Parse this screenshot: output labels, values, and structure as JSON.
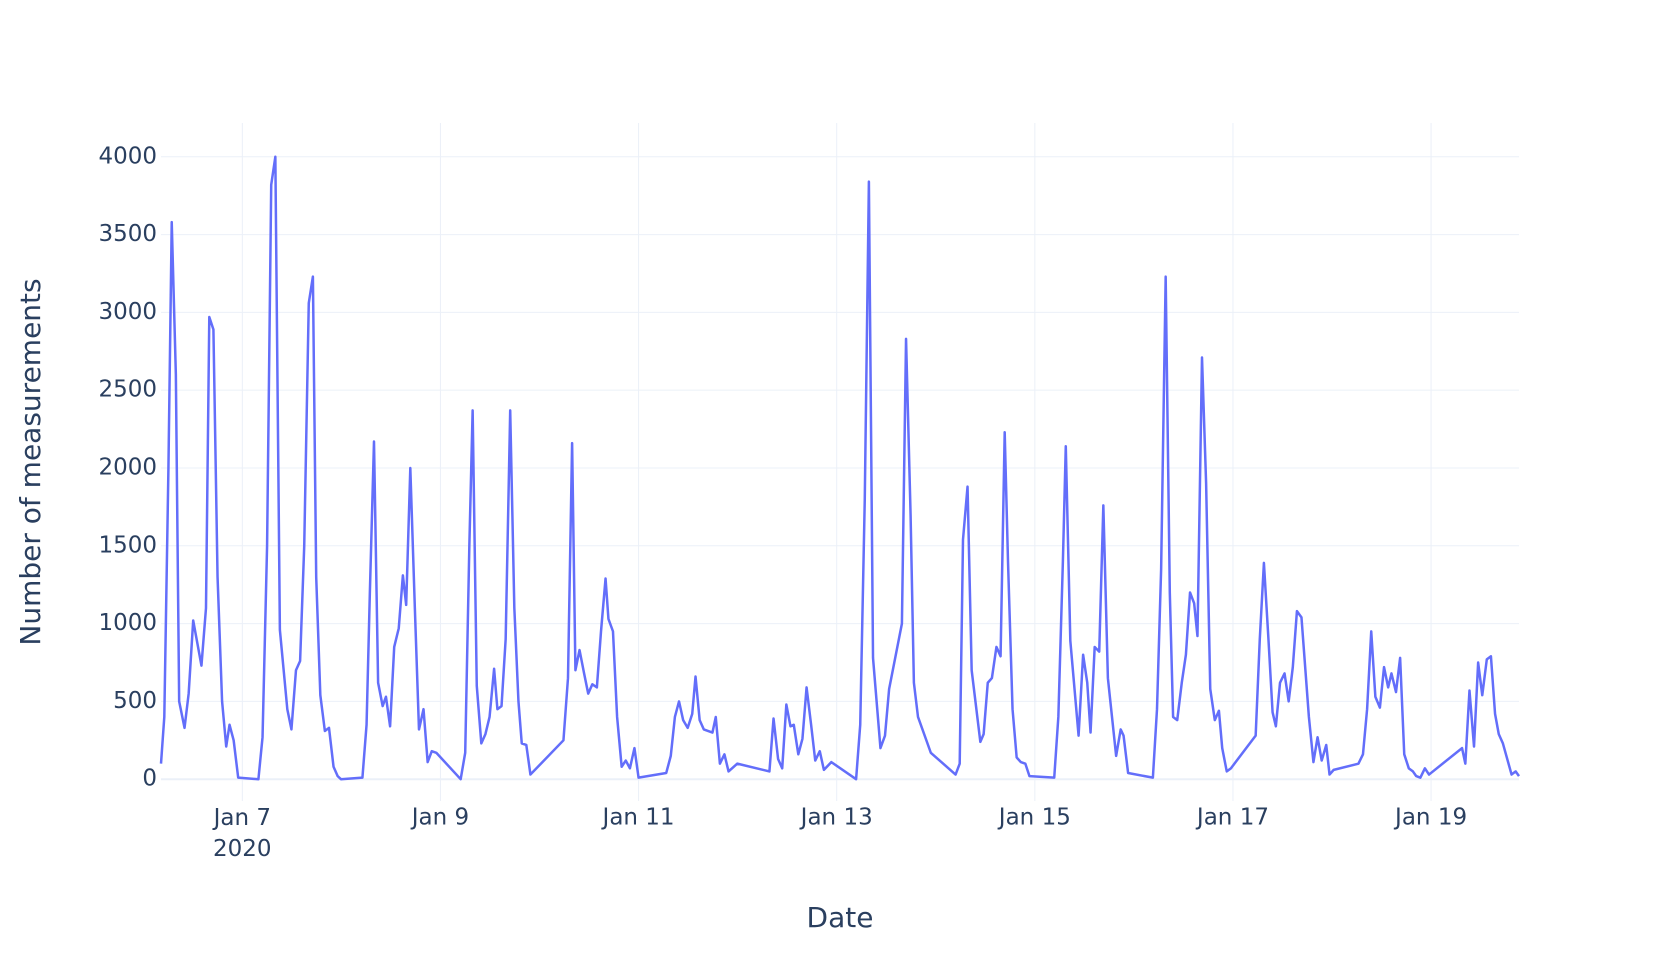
{
  "chart_data": {
    "type": "line",
    "x_label": "Date",
    "y_label": "Number of measurements",
    "color": "#636efa",
    "grid": true,
    "xlim": [
      "2020-01-06 04:18",
      "2020-01-19 21:18"
    ],
    "xticks": [
      {
        "value": "2020-01-07",
        "label": "Jan 7\n2020"
      },
      {
        "value": "2020-01-09",
        "label": "Jan 9"
      },
      {
        "value": "2020-01-11",
        "label": "Jan 11"
      },
      {
        "value": "2020-01-13",
        "label": "Jan 13"
      },
      {
        "value": "2020-01-15",
        "label": "Jan 15"
      },
      {
        "value": "2020-01-17",
        "label": "Jan 17"
      },
      {
        "value": "2020-01-19",
        "label": "Jan 19"
      }
    ],
    "ylim": [
      -140,
      4217
    ],
    "yticks": [
      0,
      500,
      1000,
      1500,
      2000,
      2500,
      3000,
      3500,
      4000
    ],
    "x": [
      "2020-01-06 04:18",
      "2020-01-06 05:06",
      "2020-01-06 06:06",
      "2020-01-06 06:54",
      "2020-01-06 07:54",
      "2020-01-06 08:42",
      "2020-01-06 10:00",
      "2020-01-06 11:00",
      "2020-01-06 12:06",
      "2020-01-06 14:06",
      "2020-01-06 15:12",
      "2020-01-06 16:00",
      "2020-01-06 17:00",
      "2020-01-06 18:00",
      "2020-01-06 19:06",
      "2020-01-06 20:06",
      "2020-01-06 20:54",
      "2020-01-06 21:54",
      "2020-01-06 23:00",
      "2020-01-07 03:54",
      "2020-01-07 04:54",
      "2020-01-07 06:00",
      "2020-01-07 07:00",
      "2020-01-07 08:00",
      "2020-01-07 09:06",
      "2020-01-07 10:54",
      "2020-01-07 11:54",
      "2020-01-07 13:00",
      "2020-01-07 14:00",
      "2020-01-07 15:00",
      "2020-01-07 16:06",
      "2020-01-07 17:06",
      "2020-01-07 17:54",
      "2020-01-07 18:54",
      "2020-01-07 20:00",
      "2020-01-07 21:00",
      "2020-01-07 22:06",
      "2020-01-07 23:06",
      "2020-01-07 23:54",
      "2020-01-08 05:06",
      "2020-01-08 06:06",
      "2020-01-08 06:54",
      "2020-01-08 07:54",
      "2020-01-08 08:54",
      "2020-01-08 10:00",
      "2020-01-08 10:48",
      "2020-01-08 11:48",
      "2020-01-08 12:48",
      "2020-01-08 13:54",
      "2020-01-08 14:54",
      "2020-01-08 15:42",
      "2020-01-08 16:42",
      "2020-01-08 17:48",
      "2020-01-08 18:48",
      "2020-01-08 19:54",
      "2020-01-08 20:54",
      "2020-01-08 21:54",
      "2020-01-08 23:00",
      "2020-01-09 04:54",
      "2020-01-09 06:00",
      "2020-01-09 07:00",
      "2020-01-09 07:48",
      "2020-01-09 08:48",
      "2020-01-09 09:54",
      "2020-01-09 10:54",
      "2020-01-09 11:54",
      "2020-01-09 13:00",
      "2020-01-09 13:48",
      "2020-01-09 14:48",
      "2020-01-09 15:48",
      "2020-01-09 16:54",
      "2020-01-09 17:54",
      "2020-01-09 18:54",
      "2020-01-09 19:42",
      "2020-01-09 20:48",
      "2020-01-09 21:48",
      "2020-01-10 05:48",
      "2020-01-10 06:54",
      "2020-01-10 07:54",
      "2020-01-10 08:42",
      "2020-01-10 09:42",
      "2020-01-10 10:48",
      "2020-01-10 11:48",
      "2020-01-10 12:48",
      "2020-01-10 13:54",
      "2020-01-10 14:54",
      "2020-01-10 16:00",
      "2020-01-10 16:42",
      "2020-01-10 17:48",
      "2020-01-10 18:48",
      "2020-01-10 19:54",
      "2020-01-10 20:54",
      "2020-01-10 21:54",
      "2020-01-10 23:00",
      "2020-01-11 00:00",
      "2020-01-11 06:42",
      "2020-01-11 07:48",
      "2020-01-11 08:48",
      "2020-01-11 09:48",
      "2020-01-11 10:48",
      "2020-01-11 11:54",
      "2020-01-11 13:00",
      "2020-01-11 13:48",
      "2020-01-11 14:48",
      "2020-01-11 15:48",
      "2020-01-11 17:54",
      "2020-01-11 18:42",
      "2020-01-11 19:42",
      "2020-01-11 20:48",
      "2020-01-11 21:48",
      "2020-01-11 23:54",
      "2020-01-12 07:42",
      "2020-01-12 08:42",
      "2020-01-12 09:48",
      "2020-01-12 10:48",
      "2020-01-12 11:48",
      "2020-01-12 12:48",
      "2020-01-12 13:36",
      "2020-01-12 14:42",
      "2020-01-12 15:42",
      "2020-01-12 16:42",
      "2020-01-12 17:48",
      "2020-01-12 18:48",
      "2020-01-12 19:54",
      "2020-01-12 20:54",
      "2020-01-12 22:42",
      "2020-01-13 04:42",
      "2020-01-13 05:42",
      "2020-01-13 06:48",
      "2020-01-13 07:48",
      "2020-01-13 08:48",
      "2020-01-13 10:36",
      "2020-01-13 11:42",
      "2020-01-13 12:42",
      "2020-01-13 15:48",
      "2020-01-13 16:48",
      "2020-01-13 17:54",
      "2020-01-13 18:42",
      "2020-01-13 19:42",
      "2020-01-13 22:48",
      "2020-01-14 04:48",
      "2020-01-14 05:48",
      "2020-01-14 06:36",
      "2020-01-14 07:42",
      "2020-01-14 08:42",
      "2020-01-14 10:48",
      "2020-01-14 11:36",
      "2020-01-14 12:36",
      "2020-01-14 13:36",
      "2020-01-14 14:42",
      "2020-01-14 15:42",
      "2020-01-14 16:42",
      "2020-01-14 17:30",
      "2020-01-14 18:36",
      "2020-01-14 19:36",
      "2020-01-14 20:36",
      "2020-01-14 21:42",
      "2020-01-14 22:42",
      "2020-01-15 04:42",
      "2020-01-15 05:42",
      "2020-01-15 06:48",
      "2020-01-15 07:30",
      "2020-01-15 08:36",
      "2020-01-15 10:36",
      "2020-01-15 11:42",
      "2020-01-15 12:42",
      "2020-01-15 13:30",
      "2020-01-15 14:30",
      "2020-01-15 15:36",
      "2020-01-15 16:36",
      "2020-01-15 17:42",
      "2020-01-15 18:42",
      "2020-01-15 19:42",
      "2020-01-15 20:48",
      "2020-01-15 21:30",
      "2020-01-15 22:36",
      "2020-01-16 04:36",
      "2020-01-16 05:36",
      "2020-01-16 06:36",
      "2020-01-16 07:42",
      "2020-01-16 08:42",
      "2020-01-16 09:30",
      "2020-01-16 10:30",
      "2020-01-16 11:36",
      "2020-01-16 12:36",
      "2020-01-16 13:36",
      "2020-01-16 14:36",
      "2020-01-16 15:24",
      "2020-01-16 16:30",
      "2020-01-16 17:30",
      "2020-01-16 18:30",
      "2020-01-16 19:36",
      "2020-01-16 20:36",
      "2020-01-16 21:24",
      "2020-01-16 22:30",
      "2020-01-16 23:30",
      "2020-01-17 05:30",
      "2020-01-17 06:30",
      "2020-01-17 07:30",
      "2020-01-17 08:36",
      "2020-01-17 09:36",
      "2020-01-17 10:24",
      "2020-01-17 11:24",
      "2020-01-17 12:30",
      "2020-01-17 13:30",
      "2020-01-17 14:30",
      "2020-01-17 15:30",
      "2020-01-17 16:36",
      "2020-01-17 18:24",
      "2020-01-17 19:30",
      "2020-01-17 20:30",
      "2020-01-17 21:30",
      "2020-01-17 22:36",
      "2020-01-17 23:24",
      "2020-01-18 00:24",
      "2020-01-18 06:24",
      "2020-01-18 07:30",
      "2020-01-18 08:30",
      "2020-01-18 09:30",
      "2020-01-18 10:30",
      "2020-01-18 11:36",
      "2020-01-18 12:36",
      "2020-01-18 13:36",
      "2020-01-18 14:24",
      "2020-01-18 15:30",
      "2020-01-18 16:30",
      "2020-01-18 17:30",
      "2020-01-18 18:36",
      "2020-01-18 19:36",
      "2020-01-18 20:24",
      "2020-01-18 21:24",
      "2020-01-18 22:30",
      "2020-01-18 23:30",
      "2020-01-19 07:30",
      "2020-01-19 08:18",
      "2020-01-19 09:18",
      "2020-01-19 10:24",
      "2020-01-19 11:24",
      "2020-01-19 12:24",
      "2020-01-19 13:30",
      "2020-01-19 14:30",
      "2020-01-19 15:30",
      "2020-01-19 16:24",
      "2020-01-19 17:24",
      "2020-01-19 19:30",
      "2020-01-19 20:30",
      "2020-01-19 21:18"
    ],
    "values": [
      100,
      400,
      2000,
      3580,
      2600,
      500,
      330,
      550,
      1020,
      730,
      1100,
      2970,
      2890,
      1300,
      500,
      210,
      350,
      250,
      10,
      0,
      270,
      1500,
      3820,
      4000,
      960,
      450,
      320,
      700,
      760,
      1500,
      3060,
      3230,
      1300,
      540,
      310,
      330,
      80,
      20,
      0,
      10,
      350,
      1200,
      2170,
      620,
      470,
      530,
      340,
      850,
      970,
      1310,
      1120,
      2000,
      1100,
      320,
      450,
      110,
      180,
      170,
      0,
      170,
      1500,
      2370,
      600,
      230,
      290,
      400,
      710,
      450,
      470,
      900,
      2370,
      1100,
      500,
      230,
      220,
      30,
      250,
      650,
      2160,
      700,
      830,
      680,
      550,
      610,
      590,
      950,
      1290,
      1030,
      950,
      400,
      80,
      120,
      70,
      200,
      10,
      40,
      150,
      400,
      500,
      380,
      330,
      420,
      660,
      380,
      320,
      300,
      400,
      100,
      160,
      50,
      100,
      50,
      390,
      130,
      70,
      480,
      340,
      350,
      160,
      260,
      590,
      350,
      120,
      180,
      60,
      110,
      0,
      350,
      1800,
      3840,
      780,
      200,
      280,
      580,
      1000,
      2830,
      1700,
      620,
      400,
      170,
      30,
      100,
      1540,
      1880,
      700,
      240,
      290,
      620,
      650,
      850,
      790,
      2230,
      1400,
      450,
      140,
      110,
      100,
      20,
      10,
      400,
      1400,
      2140,
      890,
      280,
      800,
      620,
      300,
      850,
      820,
      1760,
      650,
      400,
      150,
      320,
      280,
      40,
      10,
      450,
      1350,
      3230,
      1200,
      400,
      380,
      620,
      800,
      1200,
      1130,
      920,
      2710,
      1900,
      580,
      380,
      440,
      200,
      50,
      70,
      280,
      900,
      1390,
      900,
      430,
      340,
      620,
      680,
      500,
      720,
      1080,
      1040,
      400,
      110,
      270,
      120,
      220,
      30,
      60,
      100,
      160,
      450,
      950,
      530,
      460,
      720,
      590,
      680,
      560,
      780,
      160,
      70,
      50,
      20,
      10,
      70,
      30,
      200,
      100,
      570,
      210,
      750,
      540,
      770,
      790,
      420,
      290,
      230,
      30,
      50,
      20
    ]
  }
}
